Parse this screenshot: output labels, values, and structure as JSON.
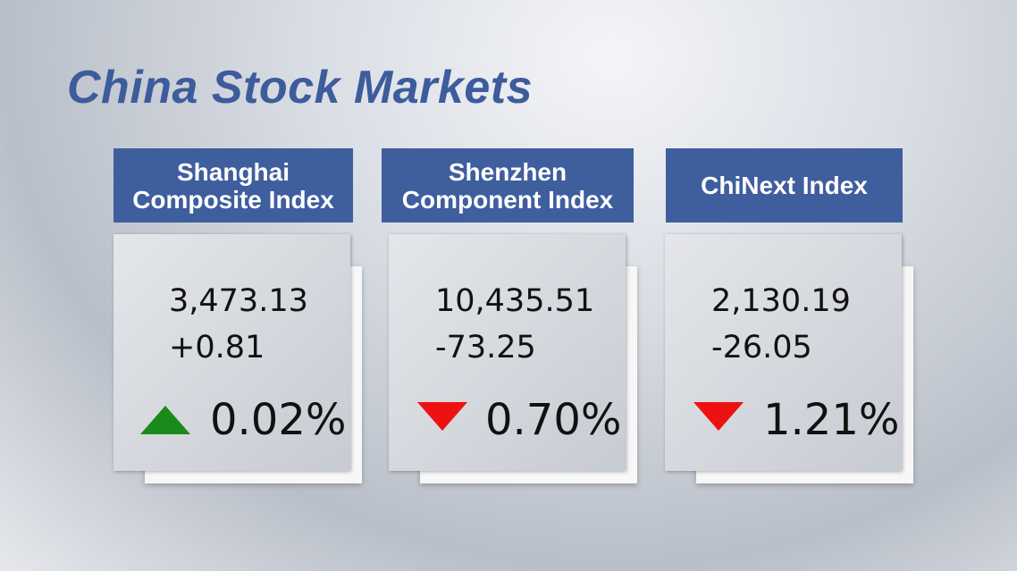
{
  "title": "China Stock Markets",
  "markets": [
    {
      "name_lines": [
        "Shanghai",
        "Composite Index"
      ],
      "value": "3,473.13",
      "change": "+0.81",
      "percent": "0.02%",
      "arrow": "up",
      "arrow_color": "#1a8a1a"
    },
    {
      "name_lines": [
        "Shenzhen",
        "Component Index"
      ],
      "value": "10,435.51",
      "change": "-73.25",
      "percent": "0.70%",
      "arrow": "down",
      "arrow_color": "#ee1111"
    },
    {
      "name_lines": [
        "ChiNext Index"
      ],
      "value": "2,130.19",
      "change": "-26.05",
      "percent": "1.21%",
      "arrow": "down",
      "arrow_color": "#ee1111"
    }
  ]
}
